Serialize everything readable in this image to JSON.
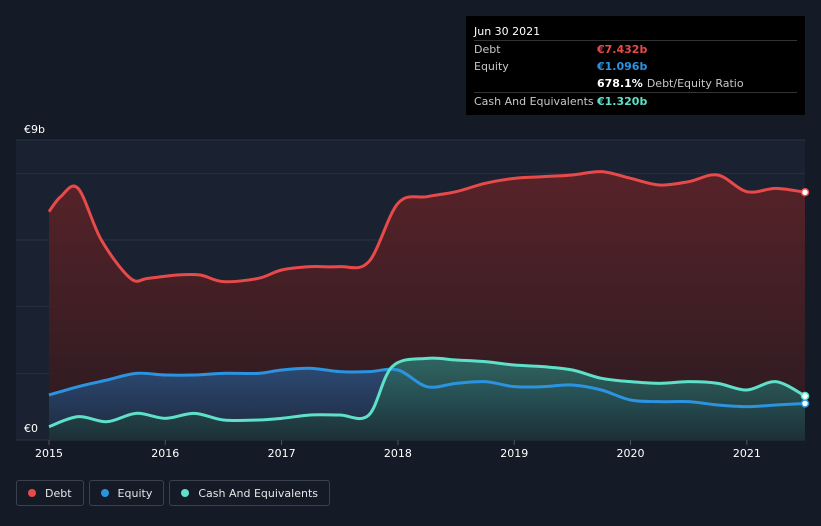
{
  "tooltip": {
    "date": "Jun 30 2021",
    "rows": [
      {
        "label": "Debt",
        "value": "€7.432b",
        "color": "#e84a4a"
      },
      {
        "label": "Equity",
        "value": "€1.096b",
        "color": "#2b93e0"
      },
      {
        "label": "",
        "value": "678.1%",
        "suffix": "Debt/Equity Ratio",
        "color": "#ffffff"
      },
      {
        "label": "Cash And Equivalents",
        "value": "€1.320b",
        "color": "#5fe0c8"
      }
    ]
  },
  "legend": [
    {
      "label": "Debt",
      "color": "#e84a4a"
    },
    {
      "label": "Equity",
      "color": "#2b93e0"
    },
    {
      "label": "Cash And Equivalents",
      "color": "#5fe0c8"
    }
  ],
  "chart_data": {
    "type": "area",
    "title": "",
    "xlabel": "",
    "ylabel": "",
    "ylim": [
      0,
      9
    ],
    "yunit": "€b",
    "y_tick_labels": [
      {
        "value": 9,
        "label": "€9b"
      },
      {
        "value": 0,
        "label": "€0"
      }
    ],
    "xlim": [
      2015.0,
      2021.5
    ],
    "x_ticks": [
      2015,
      2016,
      2017,
      2018,
      2019,
      2020,
      2021
    ],
    "x_tick_labels": [
      "2015",
      "2016",
      "2017",
      "2018",
      "2019",
      "2020",
      "2021"
    ],
    "series": [
      {
        "name": "Debt",
        "color": "#e84a4a",
        "points": [
          [
            2015.0,
            6.85
          ],
          [
            2015.1,
            7.3
          ],
          [
            2015.25,
            7.55
          ],
          [
            2015.45,
            6.0
          ],
          [
            2015.7,
            4.85
          ],
          [
            2015.85,
            4.85
          ],
          [
            2016.1,
            4.95
          ],
          [
            2016.3,
            4.95
          ],
          [
            2016.5,
            4.75
          ],
          [
            2016.8,
            4.85
          ],
          [
            2017.0,
            5.1
          ],
          [
            2017.25,
            5.2
          ],
          [
            2017.5,
            5.2
          ],
          [
            2017.75,
            5.35
          ],
          [
            2018.0,
            7.1
          ],
          [
            2018.25,
            7.3
          ],
          [
            2018.5,
            7.45
          ],
          [
            2018.75,
            7.7
          ],
          [
            2019.0,
            7.85
          ],
          [
            2019.25,
            7.9
          ],
          [
            2019.5,
            7.95
          ],
          [
            2019.75,
            8.05
          ],
          [
            2020.0,
            7.85
          ],
          [
            2020.25,
            7.65
          ],
          [
            2020.5,
            7.75
          ],
          [
            2020.75,
            7.95
          ],
          [
            2021.0,
            7.45
          ],
          [
            2021.25,
            7.55
          ],
          [
            2021.5,
            7.432
          ]
        ]
      },
      {
        "name": "Equity",
        "color": "#2b93e0",
        "points": [
          [
            2015.0,
            1.35
          ],
          [
            2015.25,
            1.6
          ],
          [
            2015.5,
            1.8
          ],
          [
            2015.75,
            2.0
          ],
          [
            2016.0,
            1.95
          ],
          [
            2016.25,
            1.95
          ],
          [
            2016.5,
            2.0
          ],
          [
            2016.8,
            2.0
          ],
          [
            2017.0,
            2.1
          ],
          [
            2017.25,
            2.15
          ],
          [
            2017.5,
            2.05
          ],
          [
            2017.75,
            2.05
          ],
          [
            2018.0,
            2.1
          ],
          [
            2018.25,
            1.6
          ],
          [
            2018.5,
            1.7
          ],
          [
            2018.75,
            1.75
          ],
          [
            2019.0,
            1.6
          ],
          [
            2019.25,
            1.6
          ],
          [
            2019.5,
            1.65
          ],
          [
            2019.75,
            1.5
          ],
          [
            2020.0,
            1.2
          ],
          [
            2020.25,
            1.15
          ],
          [
            2020.5,
            1.15
          ],
          [
            2020.75,
            1.05
          ],
          [
            2021.0,
            1.0
          ],
          [
            2021.25,
            1.05
          ],
          [
            2021.5,
            1.096
          ]
        ]
      },
      {
        "name": "Cash And Equivalents",
        "color": "#5fe0c8",
        "points": [
          [
            2015.0,
            0.4
          ],
          [
            2015.25,
            0.7
          ],
          [
            2015.5,
            0.55
          ],
          [
            2015.75,
            0.8
          ],
          [
            2016.0,
            0.65
          ],
          [
            2016.25,
            0.8
          ],
          [
            2016.5,
            0.6
          ],
          [
            2016.8,
            0.6
          ],
          [
            2017.0,
            0.65
          ],
          [
            2017.25,
            0.75
          ],
          [
            2017.5,
            0.75
          ],
          [
            2017.75,
            0.75
          ],
          [
            2017.95,
            2.2
          ],
          [
            2018.25,
            2.45
          ],
          [
            2018.5,
            2.4
          ],
          [
            2018.75,
            2.35
          ],
          [
            2019.0,
            2.25
          ],
          [
            2019.25,
            2.2
          ],
          [
            2019.5,
            2.1
          ],
          [
            2019.75,
            1.85
          ],
          [
            2020.0,
            1.75
          ],
          [
            2020.25,
            1.7
          ],
          [
            2020.5,
            1.75
          ],
          [
            2020.75,
            1.7
          ],
          [
            2021.0,
            1.5
          ],
          [
            2021.25,
            1.75
          ],
          [
            2021.5,
            1.32
          ]
        ]
      }
    ]
  }
}
